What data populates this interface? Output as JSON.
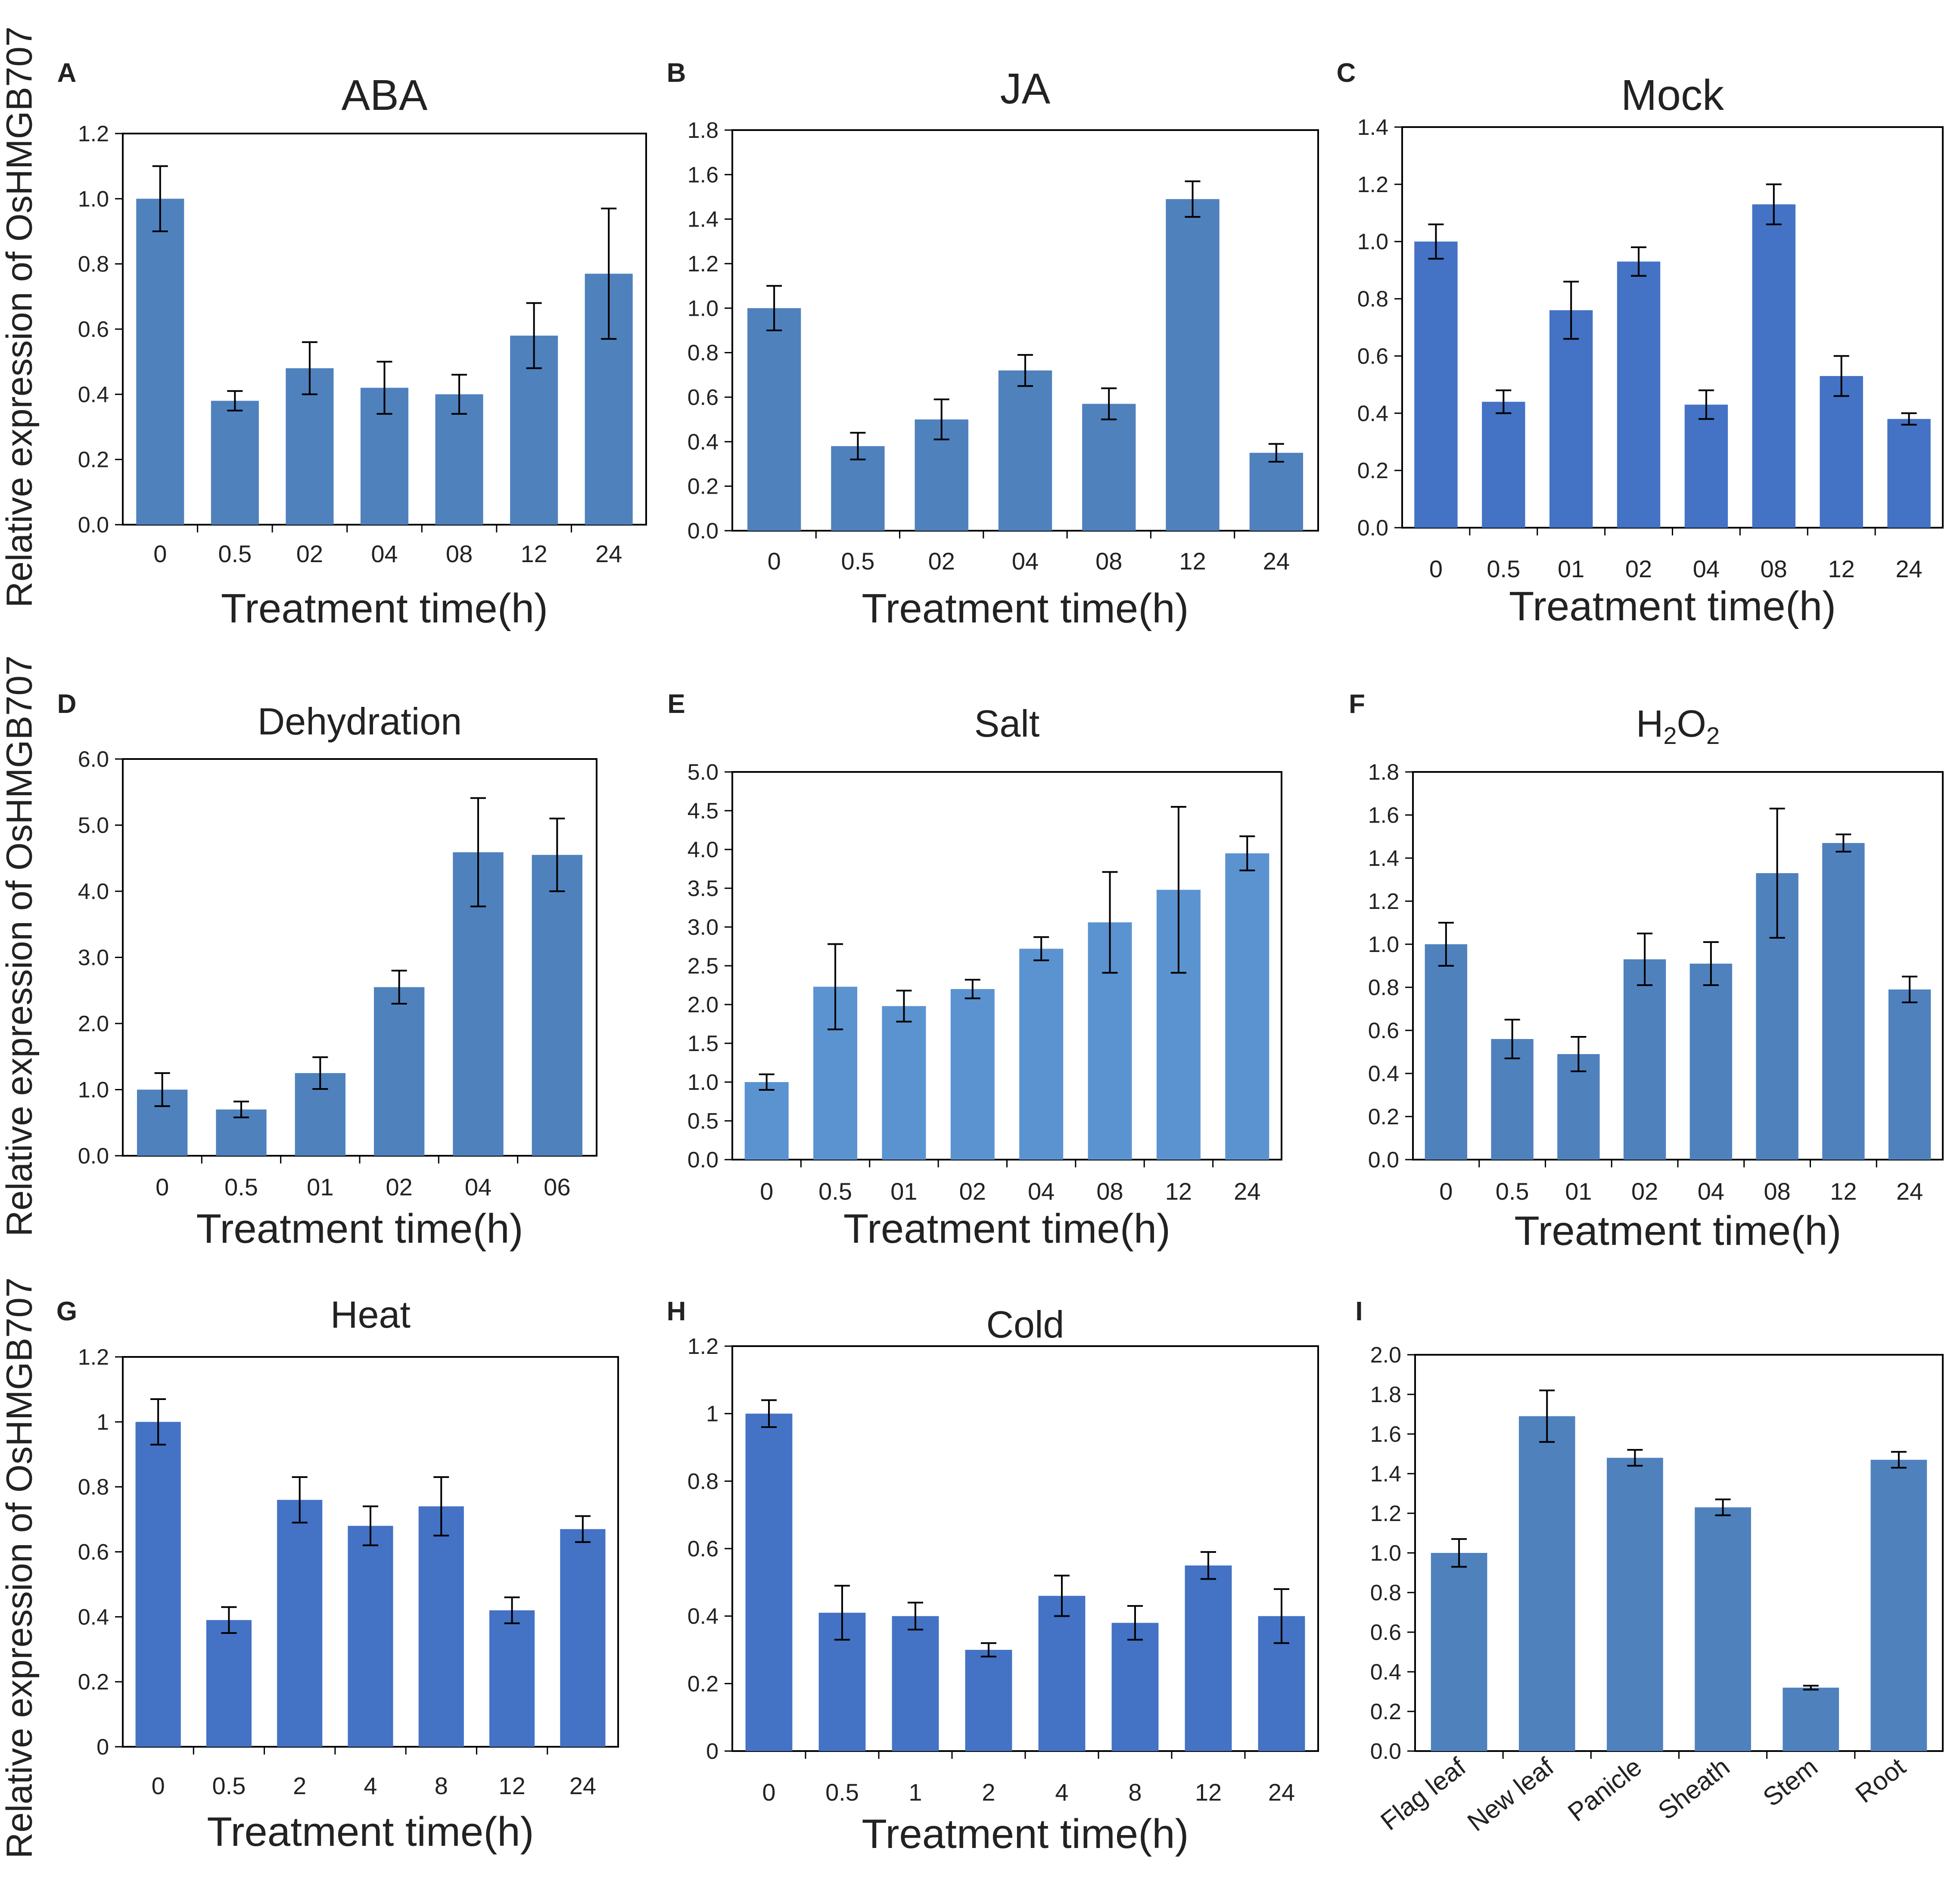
{
  "shared_ylabel": "Relative expression of OsHMGB707",
  "shared_xlabel": "Treatment time(h)",
  "colors": {
    "bar_light": "#4F81BD",
    "bar_salt": "#5B93D0",
    "bar_dark": "#4472C4",
    "frame": "#000000",
    "text": "#222222"
  },
  "chart_data": [
    {
      "panel": "A",
      "type": "bar",
      "title": "ABA",
      "xlabel": "Treatment time(h)",
      "ylabel": "Relative expression of OsHMGB707",
      "categories": [
        "0",
        "0.5",
        "02",
        "04",
        "08",
        "12",
        "24"
      ],
      "values": [
        1.0,
        0.38,
        0.48,
        0.42,
        0.4,
        0.58,
        0.77
      ],
      "errors": [
        0.1,
        0.03,
        0.08,
        0.08,
        0.06,
        0.1,
        0.2
      ],
      "ylim": [
        0,
        1.2
      ],
      "yticks": [
        "0.0",
        "0.2",
        "0.4",
        "0.6",
        "0.8",
        "1.0",
        "1.2"
      ],
      "color": "#4F81BD"
    },
    {
      "panel": "B",
      "type": "bar",
      "title": "JA",
      "xlabel": "Treatment time(h)",
      "ylabel": "",
      "categories": [
        "0",
        "0.5",
        "02",
        "04",
        "08",
        "12",
        "24"
      ],
      "values": [
        1.0,
        0.38,
        0.5,
        0.72,
        0.57,
        1.49,
        0.35
      ],
      "errors": [
        0.1,
        0.06,
        0.09,
        0.07,
        0.07,
        0.08,
        0.04
      ],
      "ylim": [
        0,
        1.8
      ],
      "yticks": [
        "0.0",
        "0.2",
        "0.4",
        "0.6",
        "0.8",
        "1.0",
        "1.2",
        "1.4",
        "1.6",
        "1.8"
      ],
      "color": "#4F81BD"
    },
    {
      "panel": "C",
      "type": "bar",
      "title": "Mock",
      "xlabel": "Treatment time(h)",
      "ylabel": "",
      "categories": [
        "0",
        "0.5",
        "01",
        "02",
        "04",
        "08",
        "12",
        "24"
      ],
      "values": [
        1.0,
        0.44,
        0.76,
        0.93,
        0.43,
        1.13,
        0.53,
        0.38
      ],
      "errors": [
        0.06,
        0.04,
        0.1,
        0.05,
        0.05,
        0.07,
        0.07,
        0.02
      ],
      "ylim": [
        0,
        1.4
      ],
      "yticks": [
        "0.0",
        "0.2",
        "0.4",
        "0.6",
        "0.8",
        "1.0",
        "1.2",
        "1.4"
      ],
      "color": "#4472C4"
    },
    {
      "panel": "D",
      "type": "bar",
      "title": "Dehydration",
      "xlabel": "Treatment time(h)",
      "ylabel": "Relative expression of OsHMGB707",
      "categories": [
        "0",
        "0.5",
        "01",
        "02",
        "04",
        "06"
      ],
      "values": [
        1.0,
        0.7,
        1.25,
        2.55,
        4.59,
        4.55
      ],
      "errors": [
        0.25,
        0.12,
        0.24,
        0.25,
        0.82,
        0.55
      ],
      "ylim": [
        0,
        6
      ],
      "yticks": [
        "0.0",
        "1.0",
        "2.0",
        "3.0",
        "4.0",
        "5.0",
        "6.0"
      ],
      "color": "#4F81BD"
    },
    {
      "panel": "E",
      "type": "bar",
      "title": "Salt",
      "xlabel": "Treatment time(h)",
      "ylabel": "",
      "categories": [
        "0",
        "0.5",
        "01",
        "02",
        "04",
        "08",
        "12",
        "24"
      ],
      "values": [
        1.0,
        2.23,
        1.98,
        2.2,
        2.72,
        3.06,
        3.48,
        3.95
      ],
      "errors": [
        0.1,
        0.55,
        0.2,
        0.12,
        0.15,
        0.65,
        1.07,
        0.22
      ],
      "ylim": [
        0,
        5
      ],
      "yticks": [
        "0.0",
        "0.5",
        "1.0",
        "1.5",
        "2.0",
        "2.5",
        "3.0",
        "3.5",
        "4.0",
        "4.5",
        "5.0"
      ],
      "color": "#5B93D0"
    },
    {
      "panel": "F",
      "type": "bar",
      "title": "H",
      "title_sub1": "2",
      "title_mid": "O",
      "title_sub2": "2",
      "xlabel": "Treatment time(h)",
      "ylabel": "",
      "categories": [
        "0",
        "0.5",
        "01",
        "02",
        "04",
        "08",
        "12",
        "24"
      ],
      "values": [
        1.0,
        0.56,
        0.49,
        0.93,
        0.91,
        1.33,
        1.47,
        0.79
      ],
      "errors": [
        0.1,
        0.09,
        0.08,
        0.12,
        0.1,
        0.3,
        0.04,
        0.06
      ],
      "ylim": [
        0,
        1.8
      ],
      "yticks": [
        "0.0",
        "0.2",
        "0.4",
        "0.6",
        "0.8",
        "1.0",
        "1.2",
        "1.4",
        "1.6",
        "1.8"
      ],
      "color": "#4F81BD"
    },
    {
      "panel": "G",
      "type": "bar",
      "title": "Heat",
      "xlabel": "Treatment time(h)",
      "ylabel": "Relative expression of OsHMGB707",
      "categories": [
        "0",
        "0.5",
        "2",
        "4",
        "8",
        "12",
        "24"
      ],
      "values": [
        1.0,
        0.39,
        0.76,
        0.68,
        0.74,
        0.42,
        0.67
      ],
      "errors": [
        0.07,
        0.04,
        0.07,
        0.06,
        0.09,
        0.04,
        0.04
      ],
      "ylim": [
        0,
        1.2
      ],
      "yticks": [
        "0",
        "0.2",
        "0.4",
        "0.6",
        "0.8",
        "1",
        "1.2"
      ],
      "color": "#4472C4"
    },
    {
      "panel": "H",
      "type": "bar",
      "title": "Cold",
      "xlabel": "Treatment time(h)",
      "ylabel": "",
      "categories": [
        "0",
        "0.5",
        "1",
        "2",
        "4",
        "8",
        "12",
        "24"
      ],
      "values": [
        1.0,
        0.41,
        0.4,
        0.3,
        0.46,
        0.38,
        0.55,
        0.4
      ],
      "errors": [
        0.04,
        0.08,
        0.04,
        0.02,
        0.06,
        0.05,
        0.04,
        0.08
      ],
      "ylim": [
        0,
        1.2
      ],
      "yticks": [
        "0",
        "0.2",
        "0.4",
        "0.6",
        "0.8",
        "1",
        "1.2"
      ],
      "color": "#4472C4"
    },
    {
      "panel": "I",
      "type": "bar",
      "title": "",
      "xlabel": "",
      "ylabel": "",
      "categories": [
        "Flag leaf",
        "New leaf",
        "Panicle",
        "Sheath",
        "Stem",
        "Root"
      ],
      "values": [
        1.0,
        1.69,
        1.48,
        1.23,
        0.32,
        1.47
      ],
      "errors": [
        0.07,
        0.13,
        0.04,
        0.04,
        0.01,
        0.04
      ],
      "ylim": [
        0,
        2.0
      ],
      "yticks": [
        "0.0",
        "0.2",
        "0.4",
        "0.6",
        "0.8",
        "1.0",
        "1.2",
        "1.4",
        "1.6",
        "1.8",
        "2.0"
      ],
      "color": "#4F81BD",
      "rotate_labels": true
    }
  ]
}
